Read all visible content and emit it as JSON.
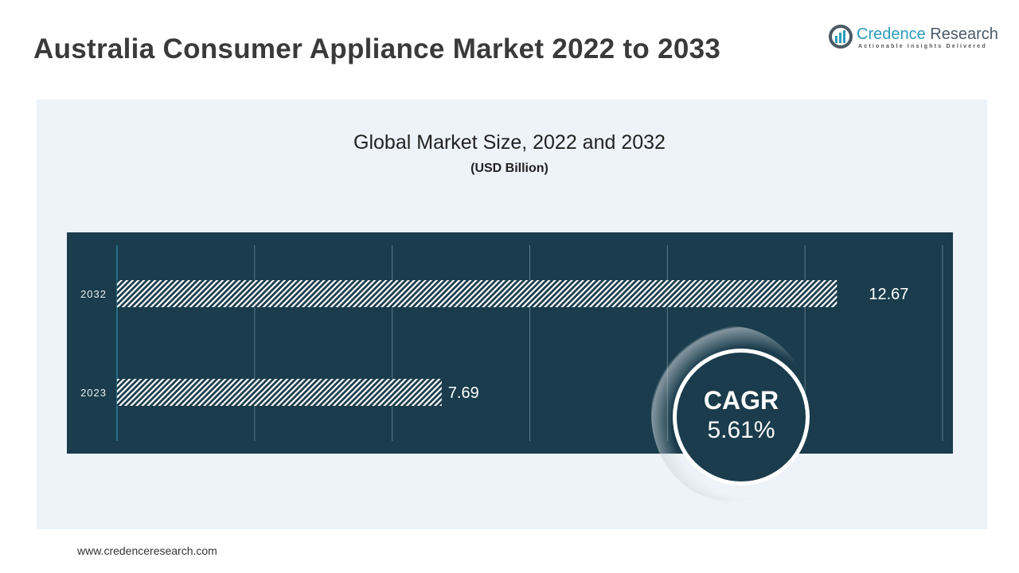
{
  "header": {
    "title": "Australia Consumer Appliance Market 2022 to 2033"
  },
  "logo": {
    "name_part1": "Credence",
    "name_part2": "Research",
    "tagline": "Actionable Insights Delivered"
  },
  "footer": {
    "url": "www.credenceresearch.com"
  },
  "cagr": {
    "label": "CAGR",
    "value": "5.61%"
  },
  "colors": {
    "panel": "#1a3c4c",
    "accent": "#2a9bb9"
  },
  "chart_data": {
    "type": "bar",
    "orientation": "horizontal",
    "title": "Global Market Size, 2022 and 2032",
    "subtitle": "(USD Billion)",
    "categories": [
      "2032",
      "2023"
    ],
    "values": [
      12.67,
      7.69
    ],
    "value_labels": [
      "12.67",
      "7.69"
    ],
    "xlim": [
      3.6,
      14.0
    ],
    "grid": true,
    "gridlines": 6
  }
}
